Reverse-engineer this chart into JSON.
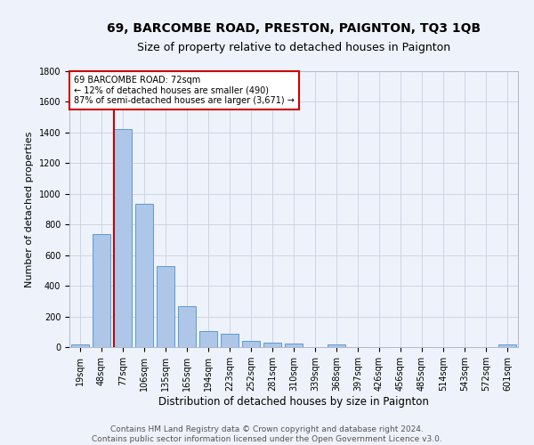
{
  "title": "69, BARCOMBE ROAD, PRESTON, PAIGNTON, TQ3 1QB",
  "subtitle": "Size of property relative to detached houses in Paignton",
  "xlabel": "Distribution of detached houses by size in Paignton",
  "ylabel": "Number of detached properties",
  "categories": [
    "19sqm",
    "48sqm",
    "77sqm",
    "106sqm",
    "135sqm",
    "165sqm",
    "194sqm",
    "223sqm",
    "252sqm",
    "281sqm",
    "310sqm",
    "339sqm",
    "368sqm",
    "397sqm",
    "426sqm",
    "456sqm",
    "485sqm",
    "514sqm",
    "543sqm",
    "572sqm",
    "601sqm"
  ],
  "values": [
    20,
    740,
    1420,
    935,
    530,
    265,
    105,
    90,
    40,
    30,
    25,
    0,
    15,
    0,
    0,
    0,
    0,
    0,
    0,
    0,
    15
  ],
  "bar_color": "#aec6e8",
  "bar_edge_color": "#5b9bd5",
  "vline_x_index": 2,
  "vline_color": "#cc0000",
  "annotation_text": "69 BARCOMBE ROAD: 72sqm\n← 12% of detached houses are smaller (490)\n87% of semi-detached houses are larger (3,671) →",
  "annotation_box_color": "#cc0000",
  "ylim": [
    0,
    1800
  ],
  "yticks": [
    0,
    200,
    400,
    600,
    800,
    1000,
    1200,
    1400,
    1600,
    1800
  ],
  "bg_color": "#eef2fa",
  "axes_bg_color": "#eef2fa",
  "footer": "Contains HM Land Registry data © Crown copyright and database right 2024.\nContains public sector information licensed under the Open Government Licence v3.0.",
  "title_fontsize": 10,
  "subtitle_fontsize": 9,
  "xlabel_fontsize": 8.5,
  "ylabel_fontsize": 8,
  "tick_fontsize": 7,
  "footer_fontsize": 6.5,
  "grid_color": "#c8d0e0"
}
